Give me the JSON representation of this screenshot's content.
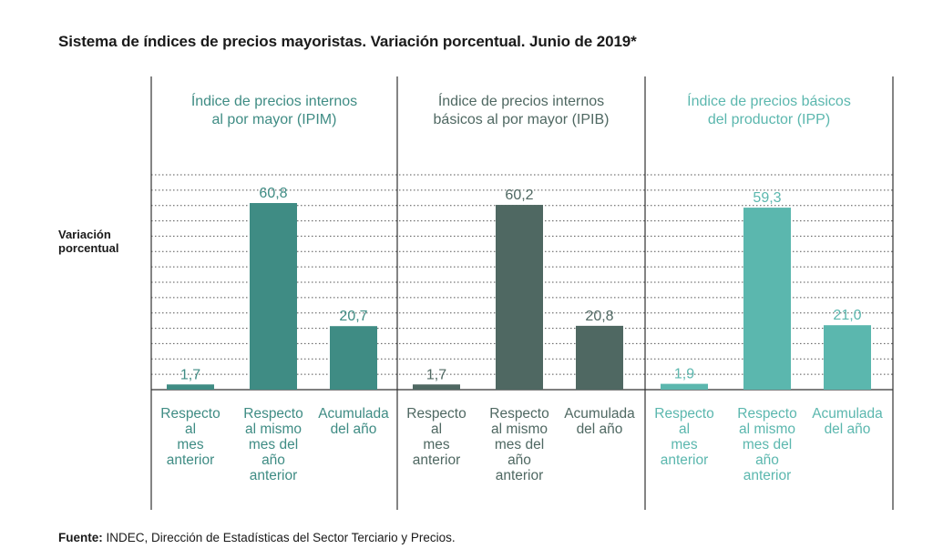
{
  "title": "Sistema de índices de precios mayoristas. Variación porcentual. Junio de 2019*",
  "ylabel_lines": [
    "Variación",
    "porcentual"
  ],
  "source": {
    "label": "Fuente:",
    "text": "INDEC, Dirección de Estadísticas del Sector Terciario y Precios."
  },
  "colors": {
    "ipim": "#3f8c84",
    "ipib": "#4f6862",
    "ipp": "#5bb7ae"
  },
  "chart_data": {
    "type": "bar",
    "grid": true,
    "ylim": [
      0,
      70
    ],
    "ylabel": "Variación porcentual",
    "categories": [
      [
        "Respecto",
        "al",
        "mes",
        "anterior"
      ],
      [
        "Respecto",
        "al mismo",
        "mes del",
        "año",
        "anterior"
      ],
      [
        "Acumulada",
        "del año"
      ]
    ],
    "panels": [
      {
        "title_lines": [
          "Índice de precios internos",
          "al por mayor (IPIM)"
        ],
        "color_key": "ipim",
        "values": [
          1.7,
          60.8,
          20.7
        ],
        "labels": [
          "1,7",
          "60,8",
          "20,7"
        ]
      },
      {
        "title_lines": [
          "Índice de precios internos",
          "básicos al por mayor (IPIB)"
        ],
        "color_key": "ipib",
        "values": [
          1.7,
          60.2,
          20.8
        ],
        "labels": [
          "1,7",
          "60,2",
          "20,8"
        ]
      },
      {
        "title_lines": [
          "Índice de precios básicos",
          "del productor (IPP)"
        ],
        "color_key": "ipp",
        "values": [
          1.9,
          59.3,
          21.0
        ],
        "labels": [
          "1,9",
          "59,3",
          "21,0"
        ]
      }
    ]
  }
}
